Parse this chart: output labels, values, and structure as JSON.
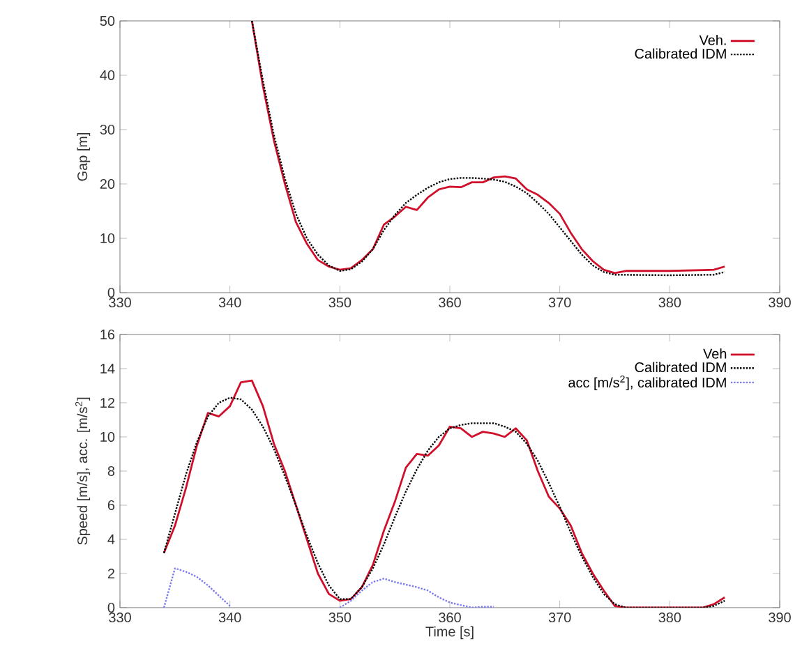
{
  "chart_data": [
    {
      "type": "line",
      "ylabel": "Gap [m]",
      "xlim": [
        330,
        390
      ],
      "ylim": [
        0,
        50
      ],
      "xticks": [
        330,
        340,
        350,
        360,
        370,
        380,
        390
      ],
      "yticks": [
        0,
        10,
        20,
        30,
        40,
        50
      ],
      "legend": "top right",
      "grid": false,
      "series": [
        {
          "name": "Veh.",
          "color": "#d0102a",
          "line_style": "solid",
          "x": [
            342,
            343,
            344,
            345,
            346,
            347,
            348,
            349,
            350,
            351,
            352,
            353,
            354,
            355,
            356,
            357,
            358,
            359,
            360,
            361,
            362,
            363,
            364,
            365,
            366,
            367,
            368,
            369,
            370,
            371,
            372,
            373,
            374,
            375,
            376,
            380,
            384,
            385
          ],
          "values": [
            50,
            38,
            28,
            20,
            13,
            9,
            6,
            4.8,
            4.2,
            4.5,
            6,
            8,
            12.5,
            14,
            15.8,
            15.2,
            17.5,
            19,
            19.5,
            19.4,
            20.3,
            20.3,
            21.2,
            21.4,
            21,
            19,
            18,
            16.5,
            14.5,
            11,
            8,
            5.8,
            4.2,
            3.6,
            4,
            4,
            4.2,
            4.8
          ]
        },
        {
          "name": "Calibrated IDM",
          "color": "#000000",
          "line_style": "dotted",
          "x": [
            342,
            343,
            344,
            345,
            346,
            347,
            348,
            349,
            350,
            351,
            352,
            353,
            354,
            355,
            356,
            357,
            358,
            359,
            360,
            361,
            362,
            363,
            364,
            365,
            366,
            367,
            368,
            369,
            370,
            371,
            372,
            373,
            374,
            375,
            380,
            384,
            385
          ],
          "values": [
            50,
            39,
            29,
            21,
            14.5,
            10,
            7,
            5,
            4,
            4.3,
            5.7,
            8,
            11.5,
            14.3,
            16.5,
            18,
            19.3,
            20.3,
            20.9,
            21.1,
            21.1,
            21,
            20.8,
            20.4,
            19.5,
            18.3,
            16.5,
            14.5,
            12,
            9.5,
            7,
            5,
            3.8,
            3.3,
            3.2,
            3.3,
            3.8
          ]
        }
      ]
    },
    {
      "type": "line",
      "xlabel": "Time [s]",
      "ylabel": "Speed [m/s], acc. [m/s$^{2}$]",
      "xlim": [
        330,
        390
      ],
      "ylim": [
        0,
        16
      ],
      "xticks": [
        330,
        340,
        350,
        360,
        370,
        380,
        390
      ],
      "yticks": [
        0,
        2,
        4,
        6,
        8,
        10,
        12,
        14,
        16
      ],
      "legend": "top right",
      "grid": false,
      "series": [
        {
          "name": "Veh",
          "color": "#d0102a",
          "line_style": "solid",
          "x": [
            334,
            335,
            336,
            337,
            338,
            339,
            340,
            341,
            342,
            343,
            344,
            345,
            346,
            347,
            348,
            349,
            350,
            351,
            352,
            353,
            354,
            355,
            356,
            357,
            358,
            359,
            360,
            361,
            362,
            363,
            364,
            365,
            366,
            367,
            368,
            369,
            370,
            371,
            372,
            373,
            374,
            375,
            376,
            383,
            384,
            385
          ],
          "values": [
            3.2,
            4.8,
            7,
            9.5,
            11.4,
            11.2,
            11.8,
            13.2,
            13.3,
            11.8,
            9.6,
            8,
            6,
            4,
            2,
            0.8,
            0.4,
            0.5,
            1.2,
            2.5,
            4.5,
            6.2,
            8.2,
            9,
            8.9,
            9.5,
            10.6,
            10.5,
            10,
            10.3,
            10.2,
            10,
            10.5,
            9.8,
            8,
            6.5,
            5.8,
            4.8,
            3.2,
            2,
            1,
            0.1,
            0,
            0,
            0.2,
            0.6
          ]
        },
        {
          "name": "Calibrated IDM",
          "color": "#000000",
          "line_style": "dotted",
          "x": [
            334,
            335,
            336,
            337,
            338,
            339,
            340,
            341,
            342,
            343,
            344,
            345,
            346,
            347,
            348,
            349,
            350,
            351,
            352,
            353,
            354,
            355,
            356,
            357,
            358,
            359,
            360,
            361,
            362,
            363,
            364,
            365,
            366,
            367,
            368,
            369,
            370,
            371,
            372,
            373,
            374,
            375,
            376,
            383,
            384,
            385
          ],
          "values": [
            3.2,
            5.5,
            7.8,
            9.7,
            11.2,
            12,
            12.3,
            12.2,
            11.6,
            10.6,
            9.3,
            7.7,
            6,
            4.2,
            2.6,
            1.3,
            0.5,
            0.5,
            1.2,
            2.3,
            3.7,
            5.3,
            6.8,
            8.1,
            9.2,
            10,
            10.5,
            10.7,
            10.8,
            10.8,
            10.8,
            10.6,
            10.3,
            9.6,
            8.6,
            7.3,
            5.9,
            4.4,
            3,
            1.8,
            0.8,
            0.2,
            0,
            0,
            0.1,
            0.4
          ]
        },
        {
          "name": "acc [m/s$^{2}$], calibrated IDM",
          "color": "#7a7aee",
          "line_style": "dotted",
          "x": [
            334,
            335,
            336,
            337,
            338,
            339,
            340,
            345,
            350,
            351,
            352,
            353,
            354,
            355,
            356,
            357,
            358,
            359,
            360,
            361,
            362,
            363,
            364
          ],
          "values": [
            0,
            2.3,
            2.1,
            1.8,
            1.3,
            0.7,
            0.1,
            null,
            0,
            0.4,
            1,
            1.5,
            1.7,
            1.5,
            1.35,
            1.2,
            1,
            0.6,
            0.3,
            0.15,
            0,
            0.05,
            0.05
          ]
        }
      ]
    }
  ]
}
